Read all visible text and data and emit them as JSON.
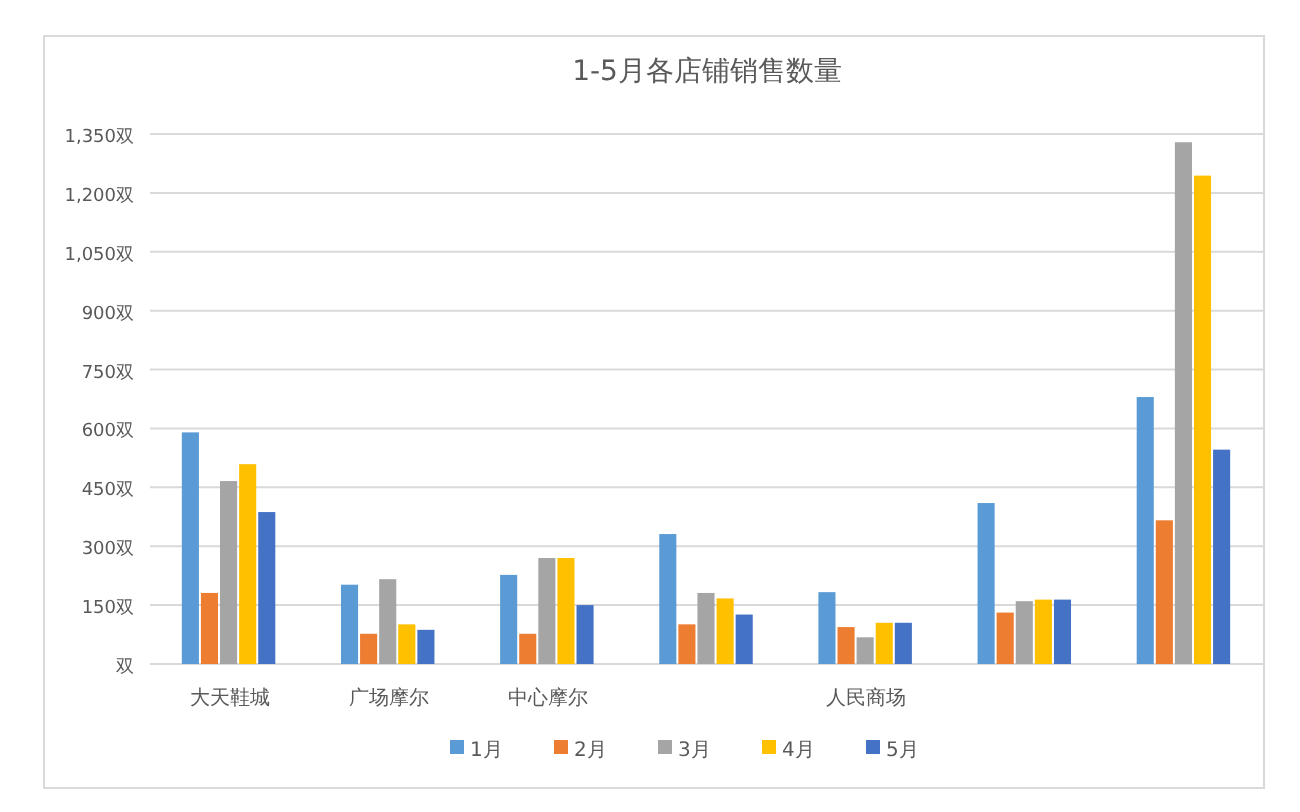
{
  "chart_data": {
    "type": "bar",
    "title": "1-5月各店铺销售数量",
    "categories": [
      "大天鞋城",
      "广场摩尔",
      "中心摩尔",
      null,
      "人民商场",
      null,
      null
    ],
    "series": [
      {
        "name": "1月",
        "color": "#5b9bd5",
        "values": [
          590,
          202,
          227,
          331,
          183,
          410,
          680
        ]
      },
      {
        "name": "2月",
        "color": "#ed7d31",
        "values": [
          181,
          77,
          77,
          101,
          94,
          131,
          366
        ]
      },
      {
        "name": "3月",
        "color": "#a5a5a5",
        "values": [
          466,
          216,
          270,
          181,
          68,
          160,
          1329
        ]
      },
      {
        "name": "4月",
        "color": "#ffc000",
        "values": [
          509,
          101,
          270,
          167,
          105,
          164,
          1244
        ]
      },
      {
        "name": "5月",
        "color": "#4472c4",
        "values": [
          387,
          87,
          150,
          126,
          105,
          164,
          546
        ]
      }
    ],
    "ylim": [
      0,
      1350
    ],
    "yticks": [
      {
        "value": 0,
        "label": "双"
      },
      {
        "value": 150,
        "label": "150双"
      },
      {
        "value": 300,
        "label": "300双"
      },
      {
        "value": 450,
        "label": "450双"
      },
      {
        "value": 600,
        "label": "600双"
      },
      {
        "value": 750,
        "label": "750双"
      },
      {
        "value": 900,
        "label": "900双"
      },
      {
        "value": 1050,
        "label": "1,050双"
      },
      {
        "value": 1200,
        "label": "1,200双"
      },
      {
        "value": 1350,
        "label": "1,350双"
      }
    ],
    "grid": "y",
    "legend": "bottom"
  }
}
